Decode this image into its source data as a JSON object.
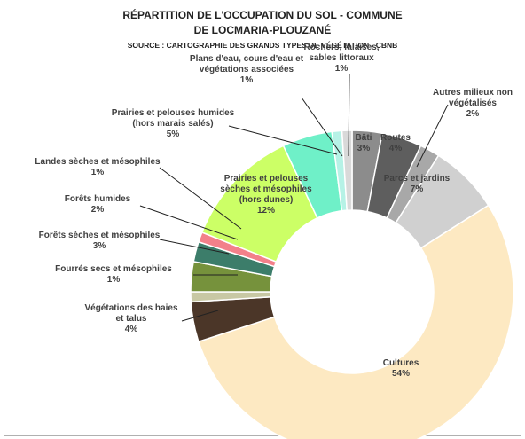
{
  "chart_data": {
    "type": "donut",
    "title": "RÉPARTITION DE L'OCCUPATION DU SOL - COMMUNE DE LOCMARIA-PLOUZANÉ",
    "subtitle": "SOURCE : CARTOGRAPHIE DES GRANDS TYPES DE VÉGÉTATION - CBNB",
    "categories": [
      "Bâti",
      "Routes",
      "Autres milieux non végétalisés",
      "Parcs et jardins",
      "Cultures",
      "Végétations des haies et talus",
      "Fourrés secs et mésophiles",
      "Forêts sèches et mésophiles",
      "Forêts humides",
      "Landes sèches et mésophiles",
      "Prairies et pelouses sèches et mésophiles (hors dunes)",
      "Prairies et pelouses humides (hors marais salés)",
      "Plans d'eau, cours d'eau et végétations associées",
      "Rochers, falaises, sables littoraux"
    ],
    "values": [
      3,
      4,
      2,
      7,
      54,
      4,
      1,
      3,
      2,
      1,
      12,
      5,
      1,
      1
    ],
    "value_labels": [
      "3%",
      "4%",
      "2%",
      "7%",
      "54%",
      "4%",
      "1%",
      "3%",
      "2%",
      "1%",
      "12%",
      "5%",
      "1%",
      "1%"
    ],
    "colors": [
      "#8c8c8c",
      "#5e5e5e",
      "#a8a8a8",
      "#d0d0d0",
      "#fde9c2",
      "#4b3628",
      "#c8c8a4",
      "#76923c",
      "#3c7d6a",
      "#f2808a",
      "#ccff66",
      "#6ff0c8",
      "#b6f2e6",
      "#d9d9d9"
    ]
  }
}
